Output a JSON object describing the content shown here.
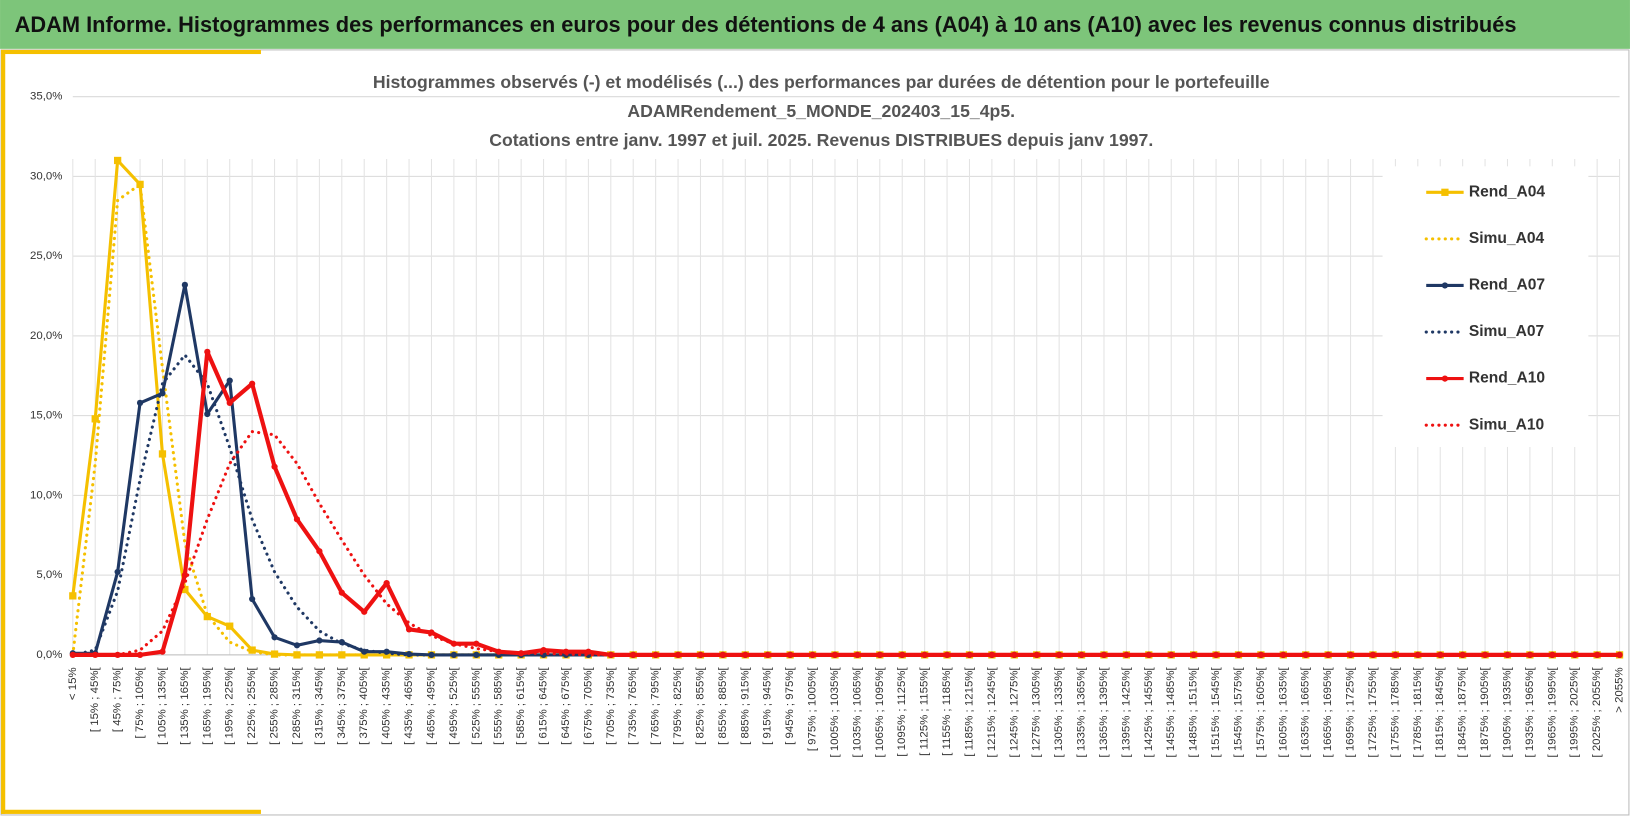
{
  "header": {
    "title": "ADAM Informe. Histogrammes des performances en euros pour des détentions de 4 ans (A04) à 10 ans (A10) avec les revenus connus distribués"
  },
  "chart_data": {
    "type": "line",
    "title": [
      "Histogrammes observés (-) et modélisés (...) des performances par durées de détention pour  le portefeuille",
      "ADAMRendement_5_MONDE_202403_15_4p5.",
      "Cotations entre janv. 1997 et juil. 2025. Revenus DISTRIBUES depuis janv 1997."
    ],
    "categories": [
      "< 15%",
      "[ 15% ; 45%[",
      "[ 45% ; 75%[",
      "[ 75% ; 105%[",
      "[ 105% ; 135%[",
      "[ 135% ; 165%[",
      "[ 165% ; 195%[",
      "[ 195% ; 225%[",
      "[ 225% ; 255%[",
      "[ 255% ; 285%[",
      "[ 285% ; 315%[",
      "[ 315% ; 345%[",
      "[ 345% ; 375%[",
      "[ 375% ; 405%[",
      "[ 405% ; 435%[",
      "[ 435% ; 465%[",
      "[ 465% ; 495%[",
      "[ 495% ; 525%[",
      "[ 525% ; 555%[",
      "[ 555% ; 585%[",
      "[ 585% ; 615%[",
      "[ 615% ; 645%[",
      "[ 645% ; 675%[",
      "[ 675% ; 705%[",
      "[ 705% ; 735%[",
      "[ 735% ; 765%[",
      "[ 765% ; 795%[",
      "[ 795% ; 825%[",
      "[ 825% ; 855%[",
      "[ 855% ; 885%[",
      "[ 885% ; 915%[",
      "[ 915% ; 945%[",
      "[ 945% ; 975%[",
      "[ 975% ; 1005%[",
      "[ 1005% ; 1035%[",
      "[ 1035% ; 1065%[",
      "[ 1065% ; 1095%[",
      "[ 1095% ; 1125%[",
      "[ 1125% ; 1155%[",
      "[ 1155% ; 1185%[",
      "[ 1185% ; 1215%[",
      "[ 1215% ; 1245%[",
      "[ 1245% ; 1275%[",
      "[ 1275% ; 1305%[",
      "[ 1305% ; 1335%[",
      "[ 1335% ; 1365%[",
      "[ 1365% ; 1395%[",
      "[ 1395% ; 1425%[",
      "[ 1425% ; 1455%[",
      "[ 1455% ; 1485%[",
      "[ 1485% ; 1515%[",
      "[ 1515% ; 1545%[",
      "[ 1545% ; 1575%[",
      "[ 1575% ; 1605%[",
      "[ 1605% ; 1635%[",
      "[ 1635% ; 1665%[",
      "[ 1665% ; 1695%[",
      "[ 1695% ; 1725%[",
      "[ 1725% ; 1755%[",
      "[ 1755% ; 1785%[",
      "[ 1785% ; 1815%[",
      "[ 1815% ; 1845%[",
      "[ 1845% ; 1875%[",
      "[ 1875% ; 1905%[",
      "[ 1905% ; 1935%[",
      "[ 1935% ; 1965%[",
      "[ 1965% ; 1995%[",
      "[ 1995% ; 2025%[",
      "[ 2025% ; 2055%[",
      "> 2055%"
    ],
    "series": [
      {
        "name": "Rend_A04",
        "color": "#f5c000",
        "style": "solid",
        "marker": "square",
        "values": [
          3.7,
          14.8,
          31.0,
          29.5,
          12.6,
          4.1,
          2.4,
          1.8,
          0.3,
          0.05,
          0,
          0,
          0,
          0,
          0,
          0,
          0,
          0,
          0,
          0,
          0,
          0,
          0,
          0,
          0,
          0,
          0,
          0,
          0,
          0,
          0,
          0,
          0,
          0,
          0,
          0,
          0,
          0,
          0,
          0,
          0,
          0,
          0,
          0,
          0,
          0,
          0,
          0,
          0,
          0,
          0,
          0,
          0,
          0,
          0,
          0,
          0,
          0,
          0,
          0,
          0,
          0,
          0,
          0,
          0,
          0,
          0,
          0,
          0,
          0
        ]
      },
      {
        "name": "Simu_A04",
        "color": "#f5c000",
        "style": "dotted",
        "values": [
          0,
          12,
          28.5,
          29.5,
          18,
          7,
          2.5,
          0.8,
          0.2,
          0,
          0,
          0,
          0,
          0,
          0,
          0,
          0,
          0,
          0,
          0,
          0,
          0,
          0,
          0,
          0,
          0,
          0,
          0,
          0,
          0,
          0,
          0,
          0,
          0,
          0,
          0,
          0,
          0,
          0,
          0,
          0,
          0,
          0,
          0,
          0,
          0,
          0,
          0,
          0,
          0,
          0,
          0,
          0,
          0,
          0,
          0,
          0,
          0,
          0,
          0,
          0,
          0,
          0,
          0,
          0,
          0,
          0,
          0,
          0,
          0
        ]
      },
      {
        "name": "Rend_A07",
        "color": "#1f3864",
        "style": "solid",
        "marker": "circle",
        "values": [
          0.1,
          0.1,
          5.2,
          15.8,
          16.4,
          23.2,
          15.1,
          17.2,
          3.5,
          1.1,
          0.6,
          0.9,
          0.8,
          0.2,
          0.2,
          0.05,
          0,
          0,
          0,
          0,
          0,
          0,
          0,
          0,
          0,
          0,
          0,
          0,
          0,
          0,
          0,
          0,
          0,
          0,
          0,
          0,
          0,
          0,
          0,
          0,
          0,
          0,
          0,
          0,
          0,
          0,
          0,
          0,
          0,
          0,
          0,
          0,
          0,
          0,
          0,
          0,
          0,
          0,
          0,
          0,
          0,
          0,
          0,
          0,
          0,
          0,
          0,
          0,
          0,
          0
        ]
      },
      {
        "name": "Simu_A07",
        "color": "#1f3864",
        "style": "dotted",
        "values": [
          0,
          0.3,
          4,
          11,
          17,
          18.8,
          17,
          13,
          8.5,
          5.2,
          3,
          1.5,
          0.7,
          0.3,
          0.1,
          0,
          0,
          0,
          0,
          0,
          0,
          0,
          0,
          0,
          0,
          0,
          0,
          0,
          0,
          0,
          0,
          0,
          0,
          0,
          0,
          0,
          0,
          0,
          0,
          0,
          0,
          0,
          0,
          0,
          0,
          0,
          0,
          0,
          0,
          0,
          0,
          0,
          0,
          0,
          0,
          0,
          0,
          0,
          0,
          0,
          0,
          0,
          0,
          0,
          0,
          0,
          0,
          0,
          0,
          0
        ]
      },
      {
        "name": "Rend_A10",
        "color": "#ee1111",
        "style": "solid",
        "marker": "circle",
        "values": [
          0,
          0,
          0,
          0,
          0.2,
          5.0,
          19.0,
          15.8,
          17.0,
          11.8,
          8.5,
          6.5,
          3.9,
          2.7,
          4.5,
          1.6,
          1.4,
          0.7,
          0.7,
          0.2,
          0.1,
          0.3,
          0.2,
          0.2,
          0,
          0,
          0,
          0,
          0,
          0,
          0,
          0,
          0,
          0,
          0,
          0,
          0,
          0,
          0,
          0,
          0,
          0,
          0,
          0,
          0,
          0,
          0,
          0,
          0,
          0,
          0,
          0,
          0,
          0,
          0,
          0,
          0,
          0,
          0,
          0,
          0,
          0,
          0,
          0,
          0,
          0,
          0,
          0,
          0,
          0
        ]
      },
      {
        "name": "Simu_A10",
        "color": "#ee1111",
        "style": "dotted",
        "values": [
          0,
          0,
          0,
          0.3,
          1.5,
          4.5,
          8.5,
          12,
          14,
          13.8,
          12,
          9.5,
          7.2,
          5,
          3.2,
          2,
          1.2,
          0.7,
          0.4,
          0.2,
          0.1,
          0.1,
          0.05,
          0,
          0,
          0,
          0,
          0,
          0,
          0,
          0,
          0,
          0,
          0,
          0,
          0,
          0,
          0,
          0,
          0,
          0,
          0,
          0,
          0,
          0,
          0,
          0,
          0,
          0,
          0,
          0,
          0,
          0,
          0,
          0,
          0,
          0,
          0,
          0,
          0,
          0,
          0,
          0,
          0,
          0,
          0,
          0,
          0,
          0,
          0
        ]
      }
    ],
    "ylim": [
      0,
      35
    ],
    "yticks": [
      {
        "value": 0,
        "label": "0,0%"
      },
      {
        "value": 5,
        "label": "5,0%"
      },
      {
        "value": 10,
        "label": "10,0%"
      },
      {
        "value": 15,
        "label": "15,0%"
      },
      {
        "value": 20,
        "label": "20,0%"
      },
      {
        "value": 25,
        "label": "25,0%"
      },
      {
        "value": 30,
        "label": "30,0%"
      },
      {
        "value": 35,
        "label": "35,0%"
      }
    ],
    "grid": true,
    "legend": "right"
  }
}
